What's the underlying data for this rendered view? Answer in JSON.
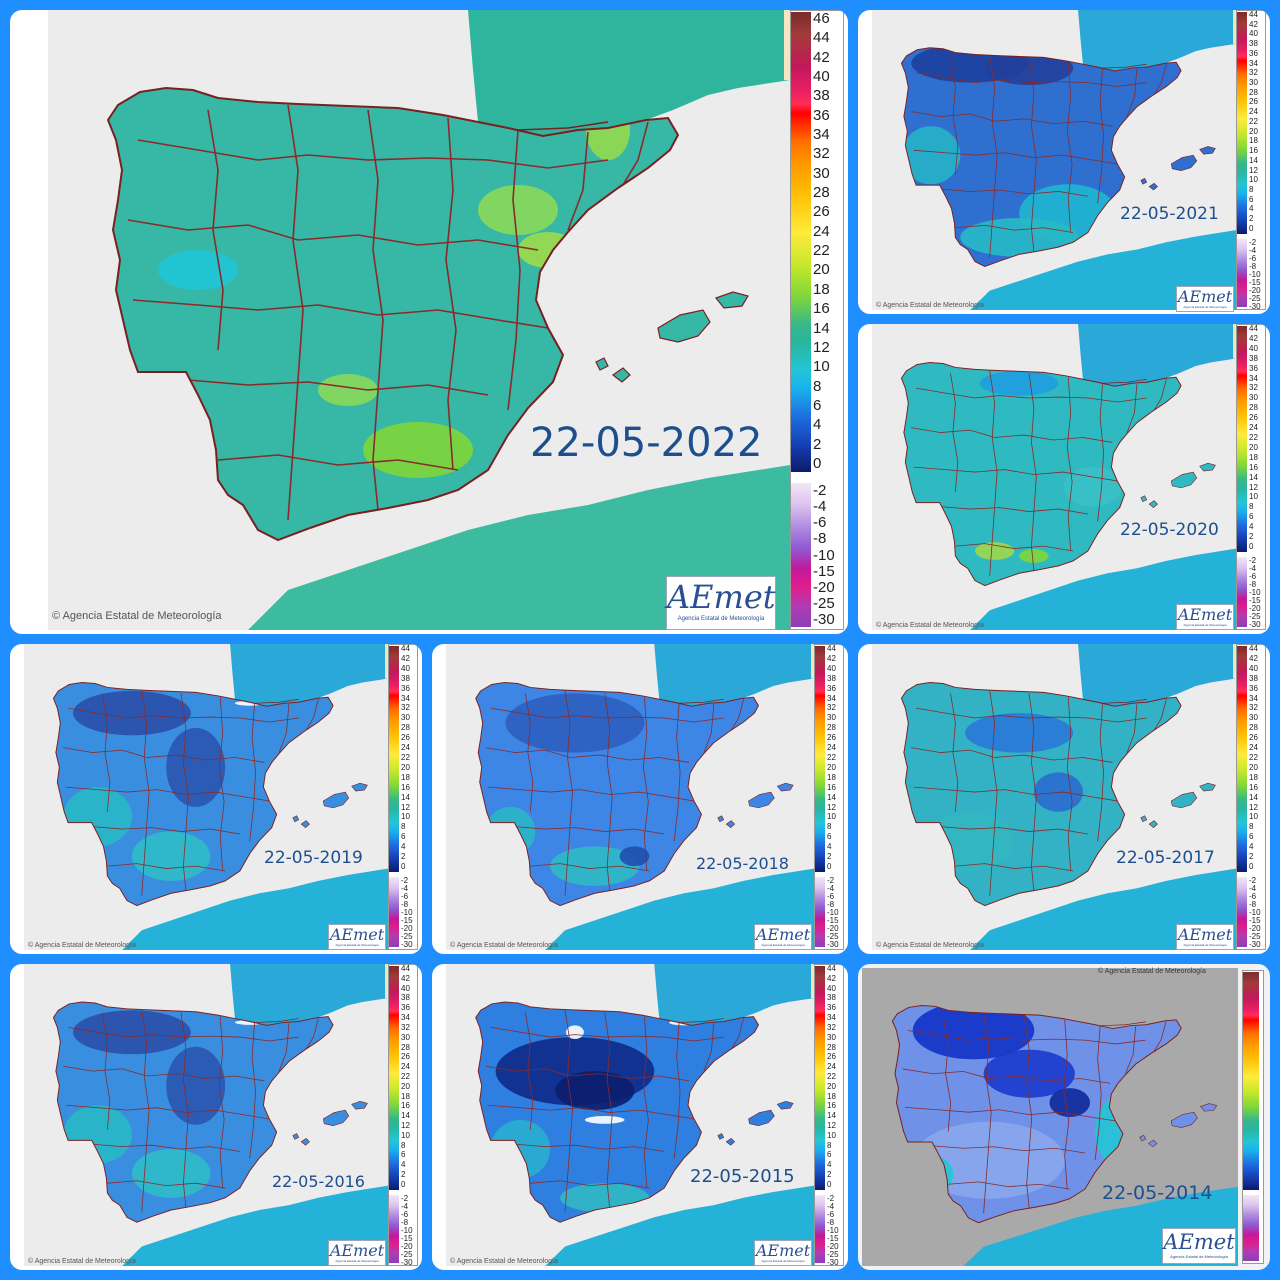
{
  "legend_main": [
    "46",
    "44",
    "42",
    "40",
    "38",
    "36",
    "34",
    "32",
    "30",
    "28",
    "26",
    "24",
    "22",
    "20",
    "18",
    "16",
    "14",
    "12",
    "10",
    "8",
    "6",
    "4",
    "2",
    "0"
  ],
  "legend_neg": [
    "-2",
    "-4",
    "-6",
    "-8",
    "-10",
    "-15",
    "-20",
    "-25",
    "-30"
  ],
  "legend_mini_main": [
    "44",
    "42",
    "40",
    "38",
    "36",
    "34",
    "32",
    "30",
    "28",
    "26",
    "24",
    "22",
    "20",
    "18",
    "16",
    "14",
    "12",
    "10",
    "8",
    "6",
    "4",
    "2",
    "0"
  ],
  "legend_mini_neg": [
    "-2",
    "-4",
    "-6",
    "-8",
    "-10",
    "-15",
    "-20",
    "-25",
    "-30"
  ],
  "copyright": "Agencia Estatal de Meteorología",
  "logo": {
    "text": "AEmet",
    "sub": "Agencia Estatal de Meteorología"
  },
  "panels": [
    {
      "id": "p2022",
      "date": "22-05-2022",
      "style": "green",
      "hasScale": true
    },
    {
      "id": "p2021",
      "date": "22-05-2021",
      "style": "verycold",
      "hasScale": true
    },
    {
      "id": "p2020",
      "date": "22-05-2020",
      "style": "mild",
      "hasScale": true
    },
    {
      "id": "p2019",
      "date": "22-05-2019",
      "style": "cold",
      "hasScale": true
    },
    {
      "id": "p2018",
      "date": "22-05-2018",
      "style": "cold2",
      "hasScale": true
    },
    {
      "id": "p2017",
      "date": "22-05-2017",
      "style": "coolish",
      "hasScale": true
    },
    {
      "id": "p2016",
      "date": "22-05-2016",
      "style": "cold",
      "hasScale": true
    },
    {
      "id": "p2015",
      "date": "22-05-2015",
      "style": "frozen",
      "hasScale": true
    },
    {
      "id": "p2014",
      "date": "22-05-2014",
      "style": "grey",
      "hasScale": true
    }
  ]
}
